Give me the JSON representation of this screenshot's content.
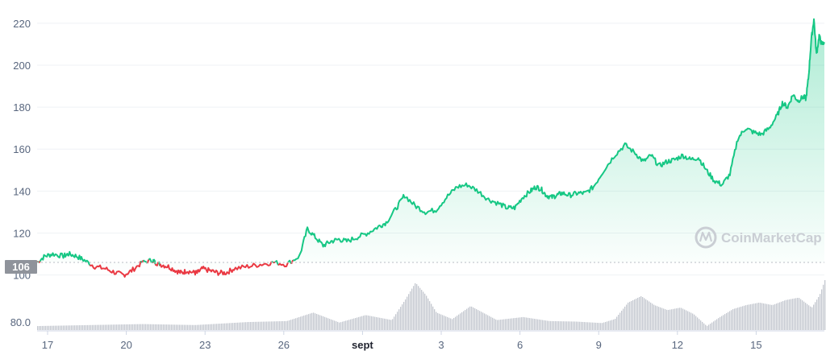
{
  "watermark": "CoinMarketCap",
  "current_price_label": "106",
  "colors": {
    "up": "#16c784",
    "down": "#ea3943",
    "grid": "#eff2f5",
    "axis_text": "#58667e",
    "volume": "#c3c7cf",
    "badge": "#8f939b"
  },
  "chart_data": {
    "type": "line",
    "x_tick_labels": [
      "17",
      "20",
      "23",
      "26",
      "sept",
      "3",
      "6",
      "9",
      "12",
      "15"
    ],
    "y_tick_labels": [
      "220",
      "200",
      "180",
      "160",
      "140",
      "120",
      "100"
    ],
    "volume_tick_labels": [
      "80.0"
    ],
    "ylim": [
      96,
      228
    ],
    "reference_price": 106,
    "grid": true,
    "price_series": {
      "x": [
        0,
        0.3,
        0.6,
        1.0,
        1.2,
        1.5,
        1.8,
        2.2,
        2.6,
        3.0,
        3.3,
        3.6,
        4.0,
        4.4,
        4.5,
        4.7,
        5.0,
        5.3,
        5.5,
        5.7,
        6.0,
        6.1,
        6.3,
        6.6,
        6.9,
        7.2,
        7.5,
        8.0,
        8.5,
        9.0,
        9.5,
        10.0,
        10.3,
        10.6,
        10.9,
        11.2,
        11.5,
        11.8,
        12.2,
        12.6,
        13.0,
        13.3,
        13.7,
        14.0,
        14.4,
        14.8,
        15.2,
        15.6,
        16.0,
        16.4,
        16.8,
        17.2,
        17.6,
        17.9,
        18.2,
        18.5,
        18.8,
        19.0,
        19.2,
        19.4,
        19.6,
        19.8,
        20.0,
        20.3,
        20.6,
        20.9,
        21.2,
        21.6,
        22.0,
        22.4,
        22.8,
        23.1,
        23.4,
        23.7,
        24.0,
        24.3,
        24.6,
        24.9,
        25.2,
        25.5,
        25.8,
        26.1,
        26.4,
        26.7,
        27.0,
        27.3,
        27.6,
        27.9,
        28.2,
        28.4,
        28.6,
        28.8,
        29.0,
        29.2,
        29.3,
        29.4,
        29.5,
        29.6,
        29.7,
        29.8,
        29.9,
        30.0
      ],
      "y": [
        106,
        109,
        110,
        109,
        110,
        109,
        107,
        104,
        103,
        101,
        100,
        102,
        106,
        107,
        106,
        105,
        104,
        102,
        101,
        102,
        101,
        101,
        103,
        102,
        101,
        101,
        103,
        104,
        105,
        106,
        105,
        109,
        122,
        118,
        114,
        116,
        117,
        116,
        118,
        120,
        123,
        125,
        132,
        138,
        133,
        130,
        131,
        137,
        142,
        143,
        140,
        136,
        134,
        132,
        132,
        137,
        140,
        142,
        141,
        138,
        137,
        138,
        139,
        138,
        139,
        139,
        142,
        150,
        157,
        162,
        158,
        154,
        157,
        152,
        154,
        155,
        157,
        155,
        156,
        150,
        145,
        143,
        148,
        165,
        170,
        168,
        167,
        170,
        176,
        182,
        180,
        186,
        183,
        185,
        184,
        195,
        212,
        222,
        205,
        214,
        210,
        211
      ]
    },
    "volume_series": {
      "x": [
        0,
        2,
        4,
        6,
        8,
        9.5,
        10.5,
        11.5,
        12.5,
        13.5,
        14.0,
        14.4,
        14.8,
        15.2,
        15.8,
        16.5,
        17.5,
        18.5,
        19.5,
        20.5,
        21.5,
        22.0,
        22.5,
        23.0,
        23.5,
        24.0,
        24.5,
        25.0,
        25.5,
        26.0,
        26.5,
        27.0,
        27.5,
        28.0,
        28.5,
        29.0,
        29.5,
        29.8,
        30.0
      ],
      "y": [
        0.08,
        0.1,
        0.12,
        0.1,
        0.16,
        0.18,
        0.35,
        0.15,
        0.3,
        0.2,
        0.6,
        0.95,
        0.7,
        0.35,
        0.22,
        0.48,
        0.2,
        0.26,
        0.18,
        0.17,
        0.14,
        0.22,
        0.55,
        0.68,
        0.5,
        0.4,
        0.45,
        0.32,
        0.08,
        0.26,
        0.42,
        0.5,
        0.55,
        0.5,
        0.6,
        0.65,
        0.45,
        0.7,
        1.0
      ]
    }
  }
}
